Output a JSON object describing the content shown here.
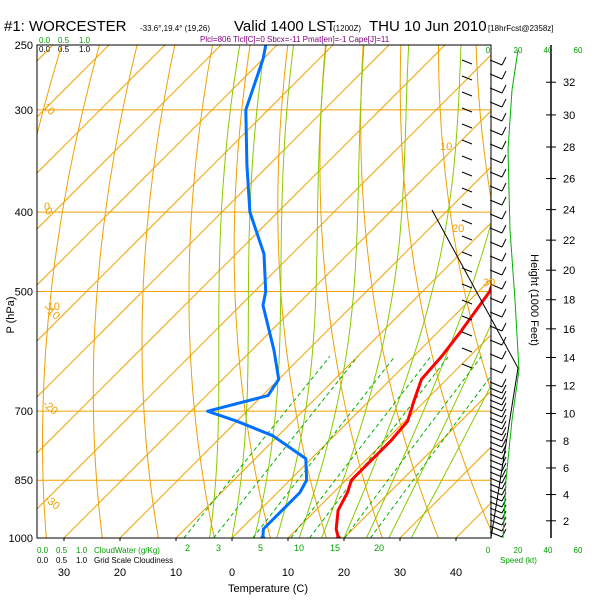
{
  "header": {
    "station": "#1: WORCESTER",
    "coords": "-33.6°,19.4° (19,26)",
    "valid": "Valid 1400 LST",
    "utc": "(1200Z)",
    "date": "THU 10 Jun 2010",
    "forecast": "[18hrFcst@2358z]",
    "indices": "Plcl=806 Tlcl[C]=0 Sbcx=-11 Pmat[en]=-1 Cape[J]=11"
  },
  "colors": {
    "temperature": "#ff0000",
    "dewpoint": "#0070ff",
    "isotherm": "#f0a000",
    "isobar": "#f0a000",
    "dry_adiabat": "#f0a000",
    "moist_adiabat": "#8cc800",
    "mixing_ratio": "#00b000",
    "wind_barb": "#000000",
    "height_curve": "#00b000"
  },
  "chart_data": {
    "type": "line",
    "xlabel": "Temperature (C)",
    "ylabel": "P (hPa)",
    "xlim": [
      -35,
      48
    ],
    "ylim": [
      1000,
      250
    ],
    "y_scale": "log",
    "x_ticks": [
      -30,
      -20,
      -10,
      0,
      10,
      20,
      30,
      40
    ],
    "x_tick_labels": [
      "30",
      "20",
      "10",
      "0",
      "10",
      "20",
      "30",
      "40"
    ],
    "pressure_levels": [
      250,
      300,
      400,
      500,
      700,
      850,
      1000
    ],
    "height_axis": {
      "label": "Height (1000 Feet)",
      "ticks": [
        0,
        2,
        4,
        6,
        8,
        10,
        12,
        14,
        16,
        18,
        20,
        22,
        24,
        26,
        28,
        30,
        32
      ]
    },
    "isotherm_labels": [
      "-10",
      "0",
      "10",
      "20",
      "30"
    ],
    "dry_adiabat_labels": [
      "10",
      "0",
      "-10",
      "-20",
      "-30"
    ],
    "top_scale_labels": [
      "0.0",
      "0.5",
      "1.0"
    ],
    "bottom_cloud_label": "CloudWater (g/Kg)",
    "bottom_cloud_scale": [
      "0.0",
      "0.5",
      "1.0"
    ],
    "bottom_grid_label": "Grid Scale Cloudiness",
    "mixing_ratio_labels": [
      "2",
      "3",
      "5",
      "10",
      "15",
      "20"
    ],
    "speed_axis": {
      "label": "Speed (kt)",
      "ticks": [
        "0",
        "20",
        "40",
        "60"
      ]
    },
    "series": [
      {
        "name": "Temperature",
        "points": [
          [
            19,
            1000
          ],
          [
            17,
            975
          ],
          [
            14,
            925
          ],
          [
            12.5,
            880
          ],
          [
            11,
            850
          ],
          [
            11,
            800
          ],
          [
            11,
            760
          ],
          [
            10.5,
            720
          ],
          [
            8,
            680
          ],
          [
            5.5,
            640
          ],
          [
            5,
            600
          ],
          [
            4,
            560
          ],
          [
            2,
            500
          ],
          [
            -2.5,
            450
          ],
          [
            -8,
            400
          ],
          [
            -15,
            350
          ],
          [
            -24,
            300
          ],
          [
            -34,
            260
          ],
          [
            -36,
            250
          ]
        ]
      },
      {
        "name": "Dewpoint",
        "points": [
          [
            5.5,
            1000
          ],
          [
            4,
            975
          ],
          [
            4,
            925
          ],
          [
            4,
            880
          ],
          [
            3,
            850
          ],
          [
            -1,
            800
          ],
          [
            -11,
            750
          ],
          [
            -20,
            720
          ],
          [
            -27,
            700
          ],
          [
            -19,
            670
          ],
          [
            -20,
            640
          ],
          [
            -26,
            590
          ],
          [
            -36,
            520
          ],
          [
            -38,
            500
          ],
          [
            -45,
            450
          ],
          [
            -55,
            400
          ],
          [
            -64,
            350
          ],
          [
            -74,
            300
          ],
          [
            -80,
            260
          ],
          [
            -82,
            250
          ]
        ]
      }
    ]
  }
}
